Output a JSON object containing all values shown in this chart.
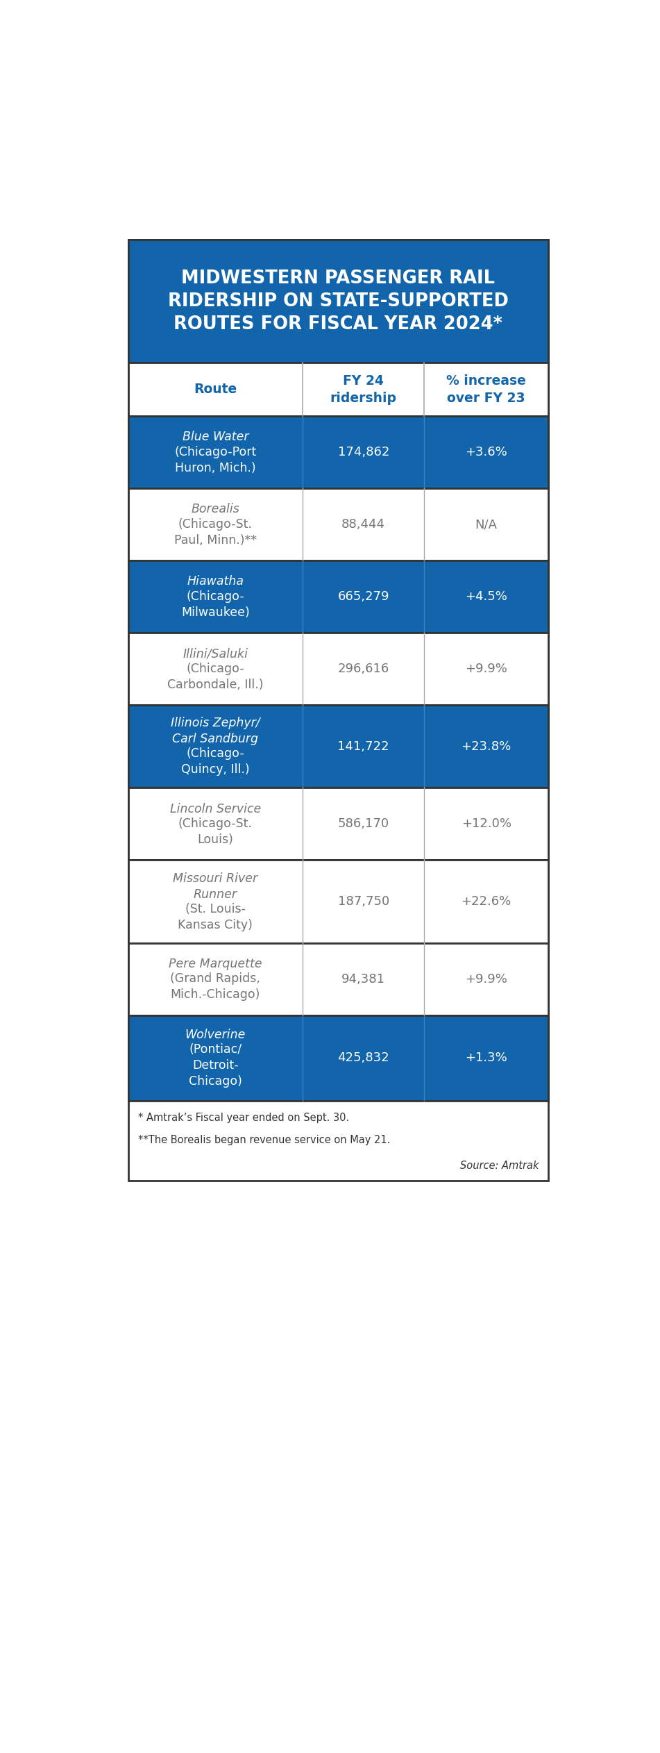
{
  "title": "MIDWESTERN PASSENGER RAIL\nRIDERSHIP ON STATE-SUPPORTED\nROUTES FOR FISCAL YEAR 2024*",
  "col_headers": [
    "Route",
    "FY 24\nridership",
    "% increase\nover FY 23"
  ],
  "rows": [
    {
      "route_line1": "Blue Water",
      "route_line2": "(Chicago-Port\nHuron, Mich.)",
      "ridership": "174,862",
      "increase": "+3.6%",
      "blue_bg": true
    },
    {
      "route_line1": "Borealis",
      "route_line2": "(Chicago-St.\nPaul, Minn.)**",
      "ridership": "88,444",
      "increase": "N/A",
      "blue_bg": false
    },
    {
      "route_line1": "Hiawatha",
      "route_line2": "(Chicago-\nMilwaukee)",
      "ridership": "665,279",
      "increase": "+4.5%",
      "blue_bg": true
    },
    {
      "route_line1": "Illini/Saluki",
      "route_line2": "(Chicago-\nCarbondale, Ill.)",
      "ridership": "296,616",
      "increase": "+9.9%",
      "blue_bg": false
    },
    {
      "route_line1": "Illinois Zephyr/\nCarl Sandburg",
      "route_line2": "(Chicago-\nQuincy, Ill.)",
      "ridership": "141,722",
      "increase": "+23.8%",
      "blue_bg": true
    },
    {
      "route_line1": "Lincoln Service",
      "route_line2": "(Chicago-St.\nLouis)",
      "ridership": "586,170",
      "increase": "+12.0%",
      "blue_bg": false
    },
    {
      "route_line1": "Missouri River\nRunner",
      "route_line2": "(St. Louis-\nKansas City)",
      "ridership": "187,750",
      "increase": "+22.6%",
      "blue_bg": false
    },
    {
      "route_line1": "Pere Marquette",
      "route_line2": "(Grand Rapids,\nMich.-Chicago)",
      "ridership": "94,381",
      "increase": "+9.9%",
      "blue_bg": false
    },
    {
      "route_line1": "Wolverine",
      "route_line2": "(Pontiac/\nDetroit-\nChicago)",
      "ridership": "425,832",
      "increase": "+1.3%",
      "blue_bg": true
    }
  ],
  "footnote1": "* Amtrak’s Fiscal year ended on Sept. 30.",
  "footnote2": "**The Borealis began revenue service on May 21.",
  "footnote3": "Source: Amtrak",
  "blue": "#1265aa",
  "white": "#ffffff",
  "gray": "#757575",
  "border": "#aaaaaa",
  "outer_border": "#333333"
}
